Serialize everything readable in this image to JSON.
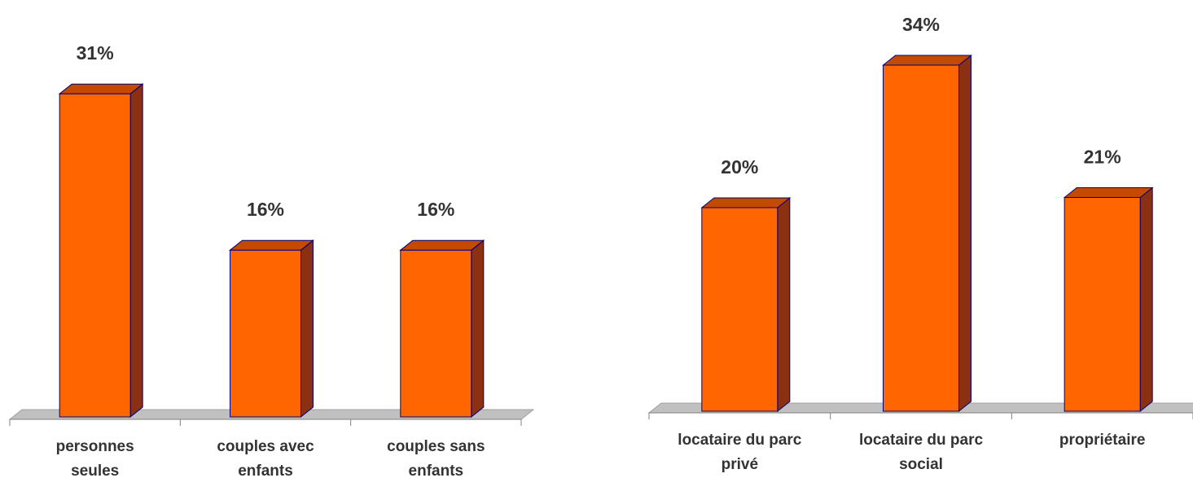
{
  "chart_data": [
    {
      "type": "bar",
      "categories": [
        "personnes seules",
        "couples avec enfants",
        "couples sans enfants"
      ],
      "values": [
        31,
        16,
        16
      ],
      "value_labels": [
        "31%",
        "16%",
        "16%"
      ],
      "color": "#ff6600"
    },
    {
      "type": "bar",
      "categories": [
        "locataire du parc privé",
        "locataire du parc social",
        "propriétaire"
      ],
      "values": [
        20,
        34,
        21
      ],
      "value_labels": [
        "20%",
        "34%",
        "21%"
      ],
      "color": "#ff6600"
    }
  ]
}
